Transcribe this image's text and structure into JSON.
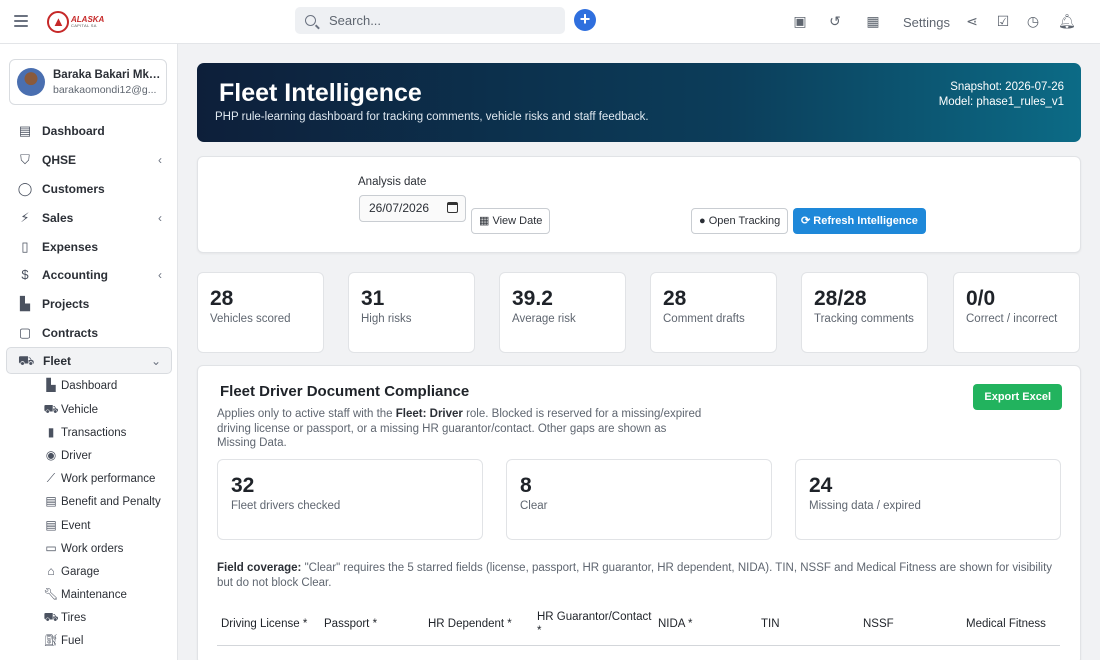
{
  "topbar": {
    "logo_text": "ALASKA",
    "logo_subtext": "CAPITAL SA",
    "search_placeholder": "Search...",
    "settings_label": "Settings"
  },
  "user": {
    "name": "Baraka Bakari Mkan...",
    "email": "barakaomondi12@g..."
  },
  "sidebar": {
    "items": [
      {
        "label": "Dashboard",
        "icon": "dashboard-icon",
        "chevron": ""
      },
      {
        "label": "QHSE",
        "icon": "shield-icon",
        "chevron": "‹"
      },
      {
        "label": "Customers",
        "icon": "user-icon",
        "chevron": ""
      },
      {
        "label": "Sales",
        "icon": "bolt-icon",
        "chevron": "‹"
      },
      {
        "label": "Expenses",
        "icon": "document-icon",
        "chevron": ""
      },
      {
        "label": "Accounting",
        "icon": "dollar-icon",
        "chevron": "‹"
      },
      {
        "label": "Projects",
        "icon": "chart-icon",
        "chevron": ""
      },
      {
        "label": "Contracts",
        "icon": "contract-icon",
        "chevron": ""
      }
    ],
    "fleet": {
      "label": "Fleet",
      "chevron": "⌄"
    },
    "fleet_sub": [
      {
        "label": "Dashboard",
        "icon": "chart-line-icon"
      },
      {
        "label": "Vehicle",
        "icon": "truck-icon"
      },
      {
        "label": "Transactions",
        "icon": "file-icon"
      },
      {
        "label": "Driver",
        "icon": "user-circle-icon"
      },
      {
        "label": "Work performance",
        "icon": "trend-icon"
      },
      {
        "label": "Benefit and Penalty",
        "icon": "list-icon"
      },
      {
        "label": "Event",
        "icon": "list-alt-icon"
      },
      {
        "label": "Work orders",
        "icon": "money-icon"
      },
      {
        "label": "Garage",
        "icon": "home-icon"
      },
      {
        "label": "Maintenance",
        "icon": "wrench-icon"
      },
      {
        "label": "Tires",
        "icon": "truck-icon"
      },
      {
        "label": "Fuel",
        "icon": "fuel-icon"
      }
    ]
  },
  "hero": {
    "title": "Fleet Intelligence",
    "subtitle": "PHP rule-learning dashboard for tracking comments, vehicle risks and staff feedback.",
    "snapshot": "Snapshot: 2026-07-26",
    "model": "Model: phase1_rules_v1"
  },
  "analysis": {
    "date_label": "Analysis date",
    "date_value": "26/07/2026",
    "view_date_label": "View Date",
    "open_tracking_label": "Open Tracking",
    "refresh_label": "Refresh Intelligence"
  },
  "stats": [
    {
      "value": "28",
      "label": "Vehicles scored"
    },
    {
      "value": "31",
      "label": "High risks"
    },
    {
      "value": "39.2",
      "label": "Average risk"
    },
    {
      "value": "28",
      "label": "Comment drafts"
    },
    {
      "value": "28/28",
      "label": "Tracking comments"
    },
    {
      "value": "0/0",
      "label": "Correct / incorrect"
    }
  ],
  "compliance": {
    "title": "Fleet Driver Document Compliance",
    "desc_pre": "Applies only to active staff with the ",
    "desc_role": "Fleet: Driver",
    "desc_post": " role. Blocked is reserved for a missing/expired driving license or passport, or a missing HR guarantor/contact. Other gaps are shown as Missing Data.",
    "export_label": "Export Excel",
    "cards": [
      {
        "value": "32",
        "label": "Fleet drivers checked"
      },
      {
        "value": "8",
        "label": "Clear"
      },
      {
        "value": "24",
        "label": "Missing data / expired"
      }
    ],
    "coverage_title": "Field coverage:",
    "coverage_text": " \"Clear\" requires the 5 starred fields (license, passport, HR guarantor, HR dependent, NIDA). TIN, NSSF and Medical Fitness are shown for visibility but do not block Clear.",
    "columns": [
      "Driving License *",
      "Passport *",
      "HR Dependent *",
      "HR Guarantor/Contact *",
      "NIDA *",
      "TIN",
      "NSSF",
      "Medical Fitness"
    ]
  }
}
